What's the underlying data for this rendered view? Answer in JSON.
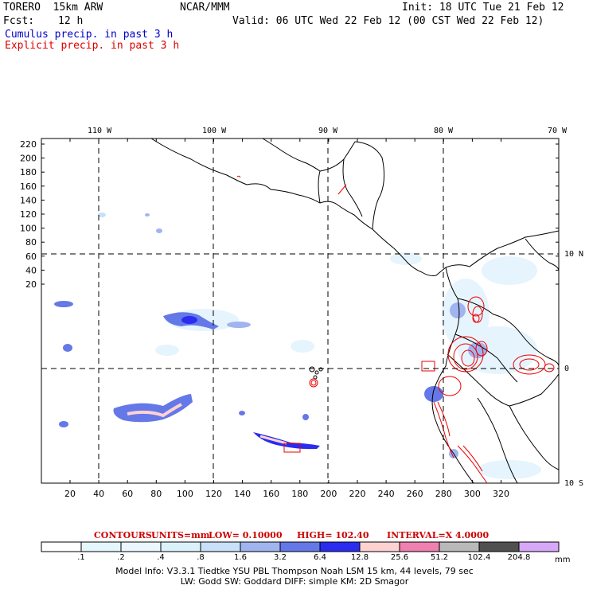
{
  "header": {
    "model": "TORERO  15km ARW",
    "center": "NCAR/MMM",
    "init": "Init: 18 UTC Tue 21 Feb 12",
    "fcst_label": "Fcst:",
    "fcst_value": "12 h",
    "valid": "Valid: 06 UTC Wed 22 Feb 12 (00 CST Wed 22 Feb 12)",
    "cumulus": "Cumulus precip. in past 3 h",
    "explicit": "Explicit precip. in past 3 h"
  },
  "colors": {
    "cumulus_text": "#0000cc",
    "explicit_text": "#dd0000",
    "contour_red": "#ee0000"
  },
  "axes": {
    "lon_labels": [
      "110 W",
      "100 W",
      "90 W",
      "80 W",
      "70 W"
    ],
    "lat_labels": [
      "10 N",
      "0",
      "10 S"
    ],
    "y_ticks": [
      "220",
      "200",
      "180",
      "160",
      "140",
      "120",
      "100",
      "80",
      "60",
      "40",
      "20"
    ],
    "x_ticks": [
      "20",
      "40",
      "60",
      "80",
      "100",
      "120",
      "140",
      "160",
      "180",
      "200",
      "220",
      "240",
      "260",
      "280",
      "300",
      "320"
    ]
  },
  "contour_info": {
    "title": "CONTOURS:",
    "units": "UNITS=mm",
    "low": "LOW= 0.10000",
    "high": "HIGH= 102.40",
    "interval": "INTERVAL=X 4.0000"
  },
  "colorbar": {
    "labels": [
      ".1",
      ".2",
      ".4",
      ".8",
      "1.6",
      "3.2",
      "6.4",
      "12.8",
      "25.6",
      "51.2",
      "102.4",
      "204.8"
    ],
    "unit": "mm",
    "colors": [
      "#ffffff",
      "#e6f6fd",
      "#ebf7ff",
      "#dcf2fb",
      "#c8e0fa",
      "#a0b4f0",
      "#6478e8",
      "#2a2cf0",
      "#ffd2d2",
      "#f080b0",
      "#b9b9b9",
      "#505050",
      "#d8a8f8"
    ]
  },
  "model_info": {
    "line1": "Model Info: V3.3.1    Tiedtke YSU PBL   Thompson     Noah LSM  15 km,   44 levels,   79 sec",
    "line2": "LW: Godd SW: Goddard DIFF: simple KM: 2D Smagor"
  }
}
